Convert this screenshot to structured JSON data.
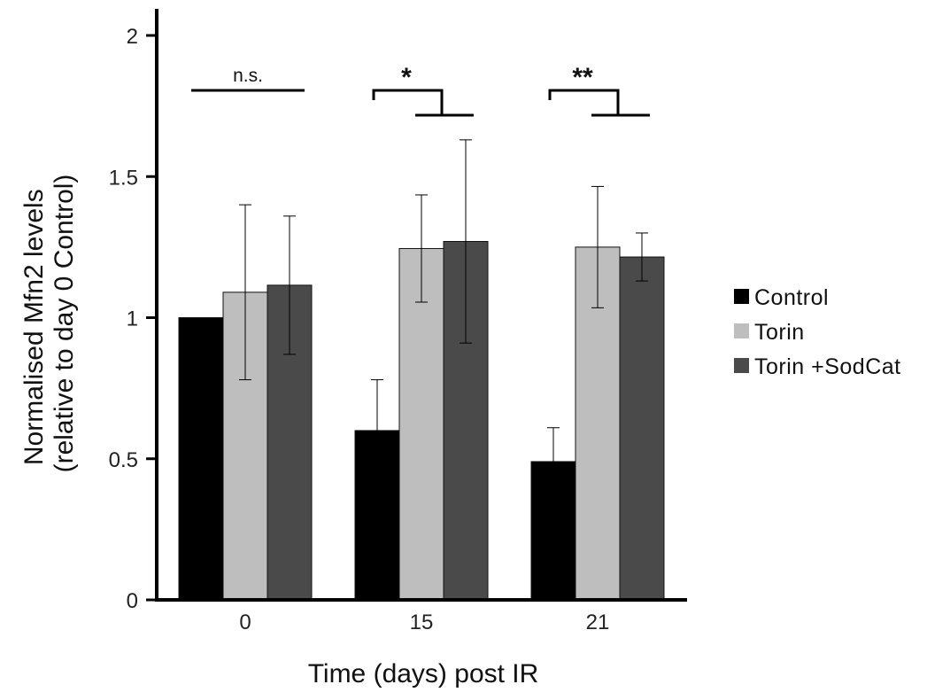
{
  "chart_data": {
    "type": "bar",
    "xlabel": "Time (days) post IR",
    "ylabel_lines": [
      "Normalised Mfn2 levels",
      "(relative to day 0 Control)"
    ],
    "categories": [
      "0",
      "15",
      "21"
    ],
    "ylim": [
      0,
      2.1
    ],
    "yticks": [
      0,
      0.5,
      1,
      1.5,
      2
    ],
    "ytick_labels": [
      "0",
      "0.5",
      "1",
      "1.5",
      "2"
    ],
    "grid": false,
    "legend_position": "right",
    "series": [
      {
        "name": "Control",
        "color": "#000000",
        "values": [
          1.0,
          0.6,
          0.49
        ],
        "errors": [
          null,
          0.18,
          0.12
        ]
      },
      {
        "name": "Torin",
        "color": "#bebebe",
        "values": [
          1.09,
          1.245,
          1.25
        ],
        "errors": [
          0.31,
          0.19,
          0.215
        ]
      },
      {
        "name": "Torin +SodCat",
        "color": "#4a4a4a",
        "values": [
          1.115,
          1.27,
          1.215
        ],
        "errors": [
          0.245,
          0.36,
          0.085
        ]
      }
    ],
    "annotations": [
      {
        "category": 0,
        "text": "n.s.",
        "style": "flat"
      },
      {
        "category": 1,
        "text": "*",
        "style": "step"
      },
      {
        "category": 2,
        "text": "**",
        "style": "step"
      }
    ]
  }
}
